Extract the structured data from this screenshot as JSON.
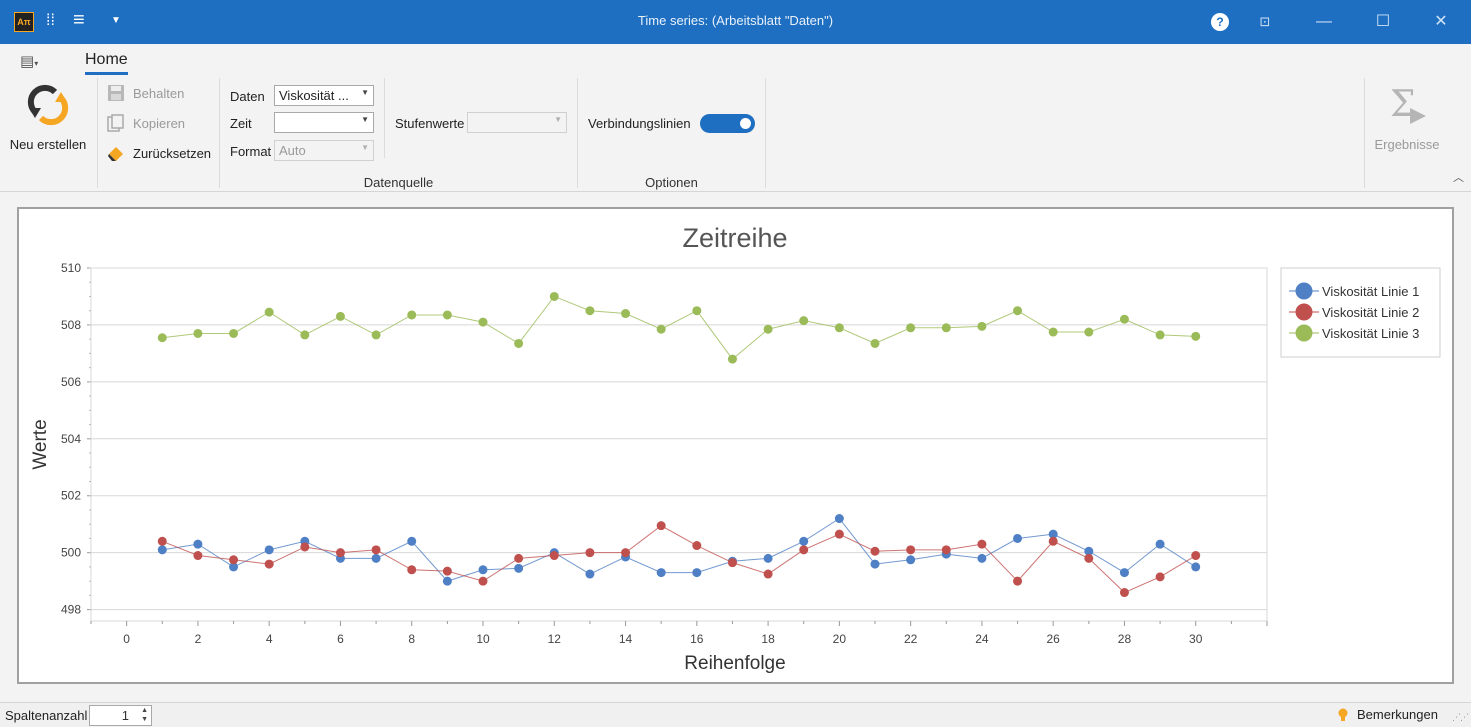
{
  "window": {
    "logo_text": "Aπ",
    "title": "Time series:  (Arbeitsblatt \"Daten\")",
    "help_label": "?",
    "min_label": "—",
    "max_label": "☐",
    "close_label": "✕"
  },
  "ribbon": {
    "tab_home": "Home",
    "new_button": "Neu erstellen",
    "keep_button": "Behalten",
    "copy_button": "Kopieren",
    "reset_button": "Zurücksetzen",
    "data_label": "Daten",
    "data_value": "Viskosität ...",
    "time_label": "Zeit",
    "time_value": "",
    "format_label": "Format",
    "format_value": "Auto",
    "stufen_label": "Stufenwerte",
    "stufen_value": "",
    "group_datasource": "Datenquelle",
    "connect_label": "Verbindungslinien",
    "connect_on": true,
    "group_options": "Optionen",
    "results_button": "Ergebnisse"
  },
  "status": {
    "columns_label": "Spaltenanzahl",
    "columns_value": "1",
    "notes_label": "Bemerkungen"
  },
  "chart_data": {
    "type": "line",
    "title": "Zeitreihe",
    "xlabel": "Reihenfolge",
    "ylabel": "Werte",
    "xlim": [
      -1,
      32
    ],
    "ylim": [
      497.6,
      510
    ],
    "xticks": [
      0,
      2,
      4,
      6,
      8,
      10,
      12,
      14,
      16,
      18,
      20,
      22,
      24,
      26,
      28,
      30
    ],
    "yticks": [
      498,
      500,
      502,
      504,
      506,
      508,
      510
    ],
    "grid": "horizontal",
    "legend_position": "right",
    "x": [
      1,
      2,
      3,
      4,
      5,
      6,
      7,
      8,
      9,
      10,
      11,
      12,
      13,
      14,
      15,
      16,
      17,
      18,
      19,
      20,
      21,
      22,
      23,
      24,
      25,
      26,
      27,
      28,
      29,
      30
    ],
    "series": [
      {
        "name": "Viskosität Linie 1",
        "color": "#4f7fc4",
        "values": [
          500.1,
          500.3,
          499.5,
          500.1,
          500.4,
          499.8,
          499.8,
          500.4,
          499.0,
          499.4,
          499.45,
          500.0,
          499.25,
          499.85,
          499.3,
          499.3,
          499.7,
          499.8,
          500.4,
          501.2,
          499.6,
          499.75,
          499.95,
          499.8,
          500.5,
          500.65,
          500.05,
          499.3,
          500.3,
          499.5
        ]
      },
      {
        "name": "Viskosität Linie 2",
        "color": "#c0504d",
        "values": [
          500.4,
          499.9,
          499.75,
          499.6,
          500.2,
          500.0,
          500.1,
          499.4,
          499.35,
          499.0,
          499.8,
          499.9,
          500.0,
          500.0,
          500.95,
          500.25,
          499.65,
          499.25,
          500.1,
          500.65,
          500.05,
          500.1,
          500.1,
          500.3,
          499.0,
          500.4,
          499.8,
          498.6,
          499.15,
          499.9
        ]
      },
      {
        "name": "Viskosität Linie 3",
        "color": "#9bbb59",
        "values": [
          507.55,
          507.7,
          507.7,
          508.45,
          507.65,
          508.3,
          507.65,
          508.35,
          508.35,
          508.1,
          507.35,
          509.0,
          508.5,
          508.4,
          507.85,
          508.5,
          506.8,
          507.85,
          508.15,
          507.9,
          507.35,
          507.9,
          507.9,
          507.95,
          508.5,
          507.75,
          507.75,
          508.2,
          507.65,
          507.6
        ]
      }
    ]
  }
}
